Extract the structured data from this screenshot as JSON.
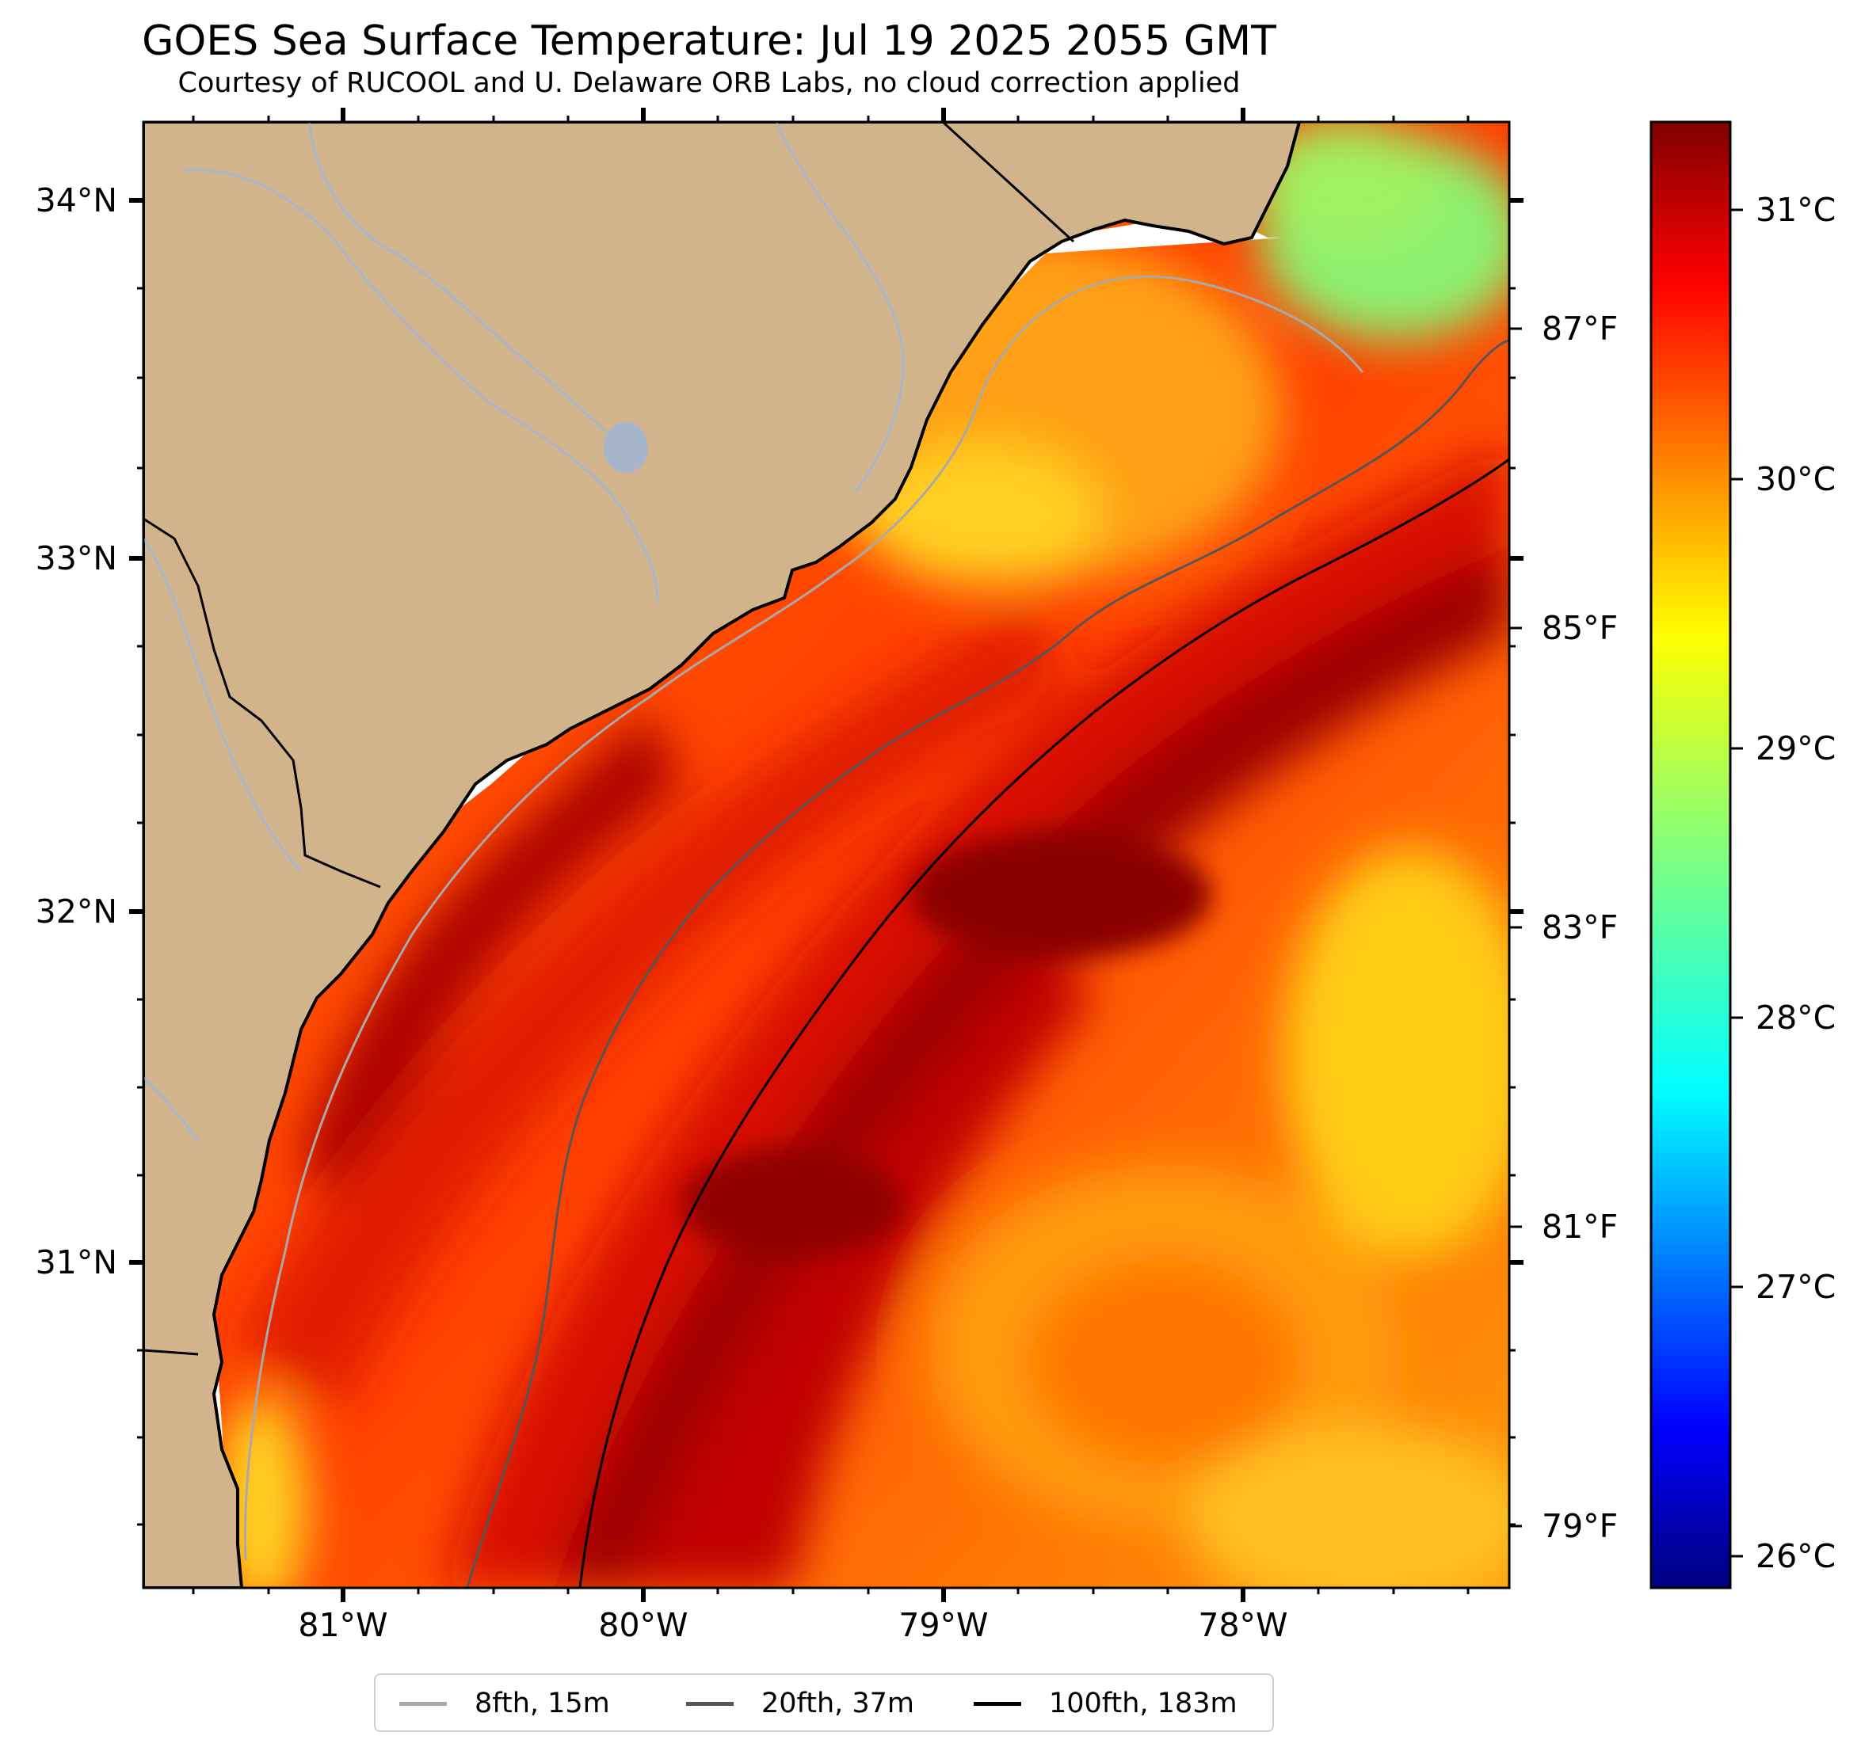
{
  "header": {
    "title": "GOES Sea Surface Temperature: Jul 19 2025 2055 GMT",
    "subtitle": "Courtesy of RUCOOL and U. Delaware ORB Labs, no cloud correction applied"
  },
  "axes": {
    "latitude_labels": [
      "34°N",
      "33°N",
      "32°N",
      "31°N"
    ],
    "longitude_labels": [
      "81°W",
      "80°W",
      "79°W",
      "78°W"
    ]
  },
  "colorbar": {
    "celsius_labels": [
      "31°C",
      "30°C",
      "29°C",
      "28°C",
      "27°C",
      "26°C"
    ],
    "fahrenheit_labels": [
      "87°F",
      "85°F",
      "83°F",
      "81°F",
      "79°F"
    ],
    "colormap": "jet",
    "range_celsius": [
      25.8,
      31.6
    ]
  },
  "legend": {
    "items": [
      {
        "label": "8fth, 15m",
        "color": "#a9a9a9"
      },
      {
        "label": "20fth, 37m",
        "color": "#555555"
      },
      {
        "label": "100fth, 183m",
        "color": "#000000"
      }
    ]
  },
  "colors": {
    "land": "#d2b48c",
    "river": "#a6b4cc",
    "coastline": "#000000",
    "no_data": "#ffffff"
  }
}
